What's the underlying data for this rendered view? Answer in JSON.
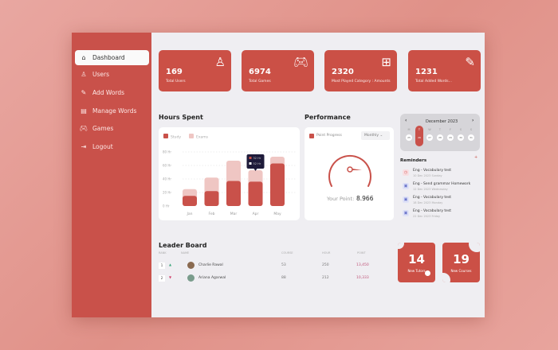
{
  "sidebar": {
    "items": [
      {
        "label": "Dashboard",
        "icon": "home-icon",
        "active": true
      },
      {
        "label": "Users",
        "icon": "user-icon"
      },
      {
        "label": "Add Words",
        "icon": "pencil-icon"
      },
      {
        "label": "Manage Words",
        "icon": "list-icon"
      },
      {
        "label": "Games",
        "icon": "gamepad-icon"
      },
      {
        "label": "Logout",
        "icon": "logout-icon"
      }
    ]
  },
  "stats": [
    {
      "value": "169",
      "label": "Total Users",
      "icon": "user-icon"
    },
    {
      "value": "6974",
      "label": "Total Games",
      "icon": "gamepad-icon"
    },
    {
      "value": "2320",
      "label": "Most Played Category : Amounts",
      "icon": "grid-icon"
    },
    {
      "value": "1231",
      "label": "Total Added Words...",
      "icon": "pencil-icon"
    }
  ],
  "hours": {
    "title": "Hours Spent",
    "tooltip": [
      "32 Hr",
      "52 Hr"
    ]
  },
  "chart_data": {
    "type": "bar",
    "stacked": true,
    "categories": [
      "Jan",
      "Feb",
      "Mar",
      "Apr",
      "May"
    ],
    "series": [
      {
        "name": "Study",
        "values": [
          15,
          22,
          37,
          36,
          63
        ],
        "color": "#c9514a"
      },
      {
        "name": "Exams",
        "values": [
          10,
          20,
          30,
          17,
          10
        ],
        "color": "#efc6c3"
      }
    ],
    "yticks": [
      "0 Hr",
      "20 Hr",
      "40 Hr",
      "60 Hr",
      "80 Hr"
    ],
    "ylim": [
      0,
      80
    ],
    "grid": true,
    "legend": "top-left"
  },
  "performance": {
    "title": "Performance",
    "legend": "Point Progress",
    "period": "Monthly",
    "point_label": "Your Point:",
    "point_value": "8.966"
  },
  "calendar": {
    "month": "December 2023",
    "days": [
      "M",
      "T",
      "W",
      "T",
      "F",
      "S",
      "S"
    ],
    "dates": [
      "25",
      "26",
      "27",
      "28",
      "29",
      "30",
      "31"
    ],
    "selected_index": 1
  },
  "reminders": {
    "title": "Reminders",
    "items": [
      {
        "title": "Eng - Vocabulary test",
        "sub": "10 Dec 2023 Sunday",
        "color": "#f8dfe2",
        "icon": "clock-icon"
      },
      {
        "title": "Eng - Send grammar Homework",
        "sub": "12 Dec 2023 Wednesday",
        "color": "#dfe2f7",
        "icon": "calendar-icon"
      },
      {
        "title": "Eng - Vocabulary test",
        "sub": "18 Dec 2023 Monday",
        "color": "#dfe2f7",
        "icon": "mail-icon"
      },
      {
        "title": "Eng - Vocabulary test",
        "sub": "22 Dec 2023 Friday",
        "color": "#dfe2f7",
        "icon": "mail-icon"
      }
    ]
  },
  "leaderboard": {
    "title": "Leader Board",
    "headers": [
      "RANK",
      "NAME",
      "COURSE",
      "HOUR",
      "POINT"
    ],
    "rows": [
      {
        "rank": "1",
        "trend": "▲",
        "name": "Charlie Rawal",
        "course": "53",
        "hour": "250",
        "point": "13,450"
      },
      {
        "rank": "2",
        "trend": "▼",
        "name": "Ariana Agarwal",
        "course": "88",
        "hour": "212",
        "point": "10,333"
      }
    ]
  },
  "tiles": [
    {
      "value": "14",
      "label": "New Tutors"
    },
    {
      "value": "19",
      "label": "New Courses"
    }
  ]
}
